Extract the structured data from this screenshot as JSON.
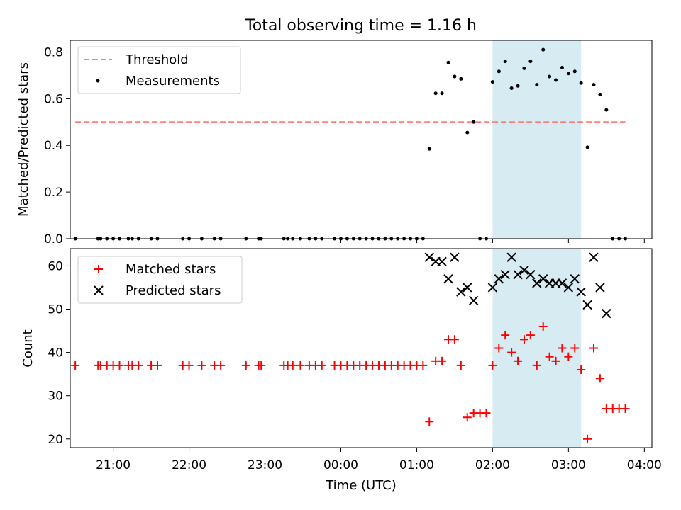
{
  "title": "Total observing time = 1.16 h",
  "colors": {
    "threshold": "#ff7f7f",
    "measurements": "#000000",
    "matched": "#ff0000",
    "predicted": "#000000",
    "observing_window": "#add8e6"
  },
  "chart_data": [
    {
      "type": "scatter",
      "ylabel": "Matched/Predicted stars",
      "ylim": [
        0,
        0.85
      ],
      "yticks": [
        "0.0",
        "0.2",
        "0.4",
        "0.6",
        "0.8"
      ],
      "xlim": [
        "20:26",
        "04:06"
      ],
      "grid": false,
      "legend_position": "top-left",
      "observing_window": [
        "02:00",
        "03:10"
      ],
      "threshold": {
        "name": "Threshold",
        "style": "dashed",
        "value": 0.5,
        "x": [
          "20:30",
          "03:45"
        ]
      },
      "series": [
        {
          "name": "Measurements",
          "x": [
            "20:30",
            "20:48",
            "20:50",
            "20:55",
            "21:00",
            "21:05",
            "21:12",
            "21:15",
            "21:20",
            "21:30",
            "21:35",
            "21:55",
            "22:00",
            "22:10",
            "22:20",
            "22:25",
            "22:45",
            "22:55",
            "22:57",
            "23:15",
            "23:18",
            "23:22",
            "23:28",
            "23:35",
            "23:40",
            "23:45",
            "23:55",
            "24:00",
            "24:05",
            "24:10",
            "24:15",
            "24:20",
            "24:25",
            "24:30",
            "24:35",
            "24:40",
            "24:45",
            "24:50",
            "24:55",
            "25:00",
            "25:05",
            "25:10",
            "25:15",
            "25:20",
            "25:25",
            "25:30",
            "25:35",
            "25:40",
            "25:45",
            "25:50",
            "25:55",
            "26:00",
            "26:05",
            "26:10",
            "26:15",
            "26:20",
            "26:25",
            "26:30",
            "26:35",
            "26:40",
            "26:45",
            "26:50",
            "26:55",
            "27:00",
            "27:05",
            "27:10",
            "27:15",
            "27:20",
            "27:25",
            "27:30",
            "27:35",
            "27:40",
            "27:45"
          ],
          "y": [
            0,
            0,
            0,
            0,
            0,
            0,
            0,
            0,
            0,
            0,
            0,
            0,
            0,
            0,
            0,
            0,
            0,
            0,
            0,
            0,
            0,
            0,
            0,
            0,
            0,
            0,
            0,
            0,
            0,
            0,
            0,
            0,
            0,
            0,
            0,
            0,
            0,
            0,
            0,
            0,
            0,
            0.385,
            0.623,
            0.623,
            0.755,
            0.695,
            0.685,
            0.455,
            0.5,
            0,
            0,
            0.672,
            0.717,
            0.76,
            0.645,
            0.655,
            0.73,
            0.76,
            0.66,
            0.81,
            0.695,
            0.68,
            0.733,
            0.708,
            0.717,
            0.667,
            0.392,
            0.66,
            0.618,
            0.552,
            0,
            0,
            0
          ]
        }
      ]
    },
    {
      "type": "scatter",
      "xlabel": "Time (UTC)",
      "ylabel": "Count",
      "ylim": [
        18,
        64
      ],
      "yticks": [
        "20",
        "30",
        "40",
        "50",
        "60"
      ],
      "xlim": [
        "20:26",
        "04:06"
      ],
      "xticks": [
        "21:00",
        "22:00",
        "23:00",
        "00:00",
        "01:00",
        "02:00",
        "03:00",
        "04:00"
      ],
      "grid": false,
      "legend_position": "top-left",
      "observing_window": [
        "02:00",
        "03:10"
      ],
      "series": [
        {
          "name": "Matched stars",
          "marker": "+",
          "x": [
            "20:30",
            "20:48",
            "20:50",
            "20:55",
            "21:00",
            "21:05",
            "21:12",
            "21:15",
            "21:20",
            "21:30",
            "21:35",
            "21:55",
            "22:00",
            "22:10",
            "22:20",
            "22:25",
            "22:45",
            "22:55",
            "22:57",
            "23:15",
            "23:18",
            "23:22",
            "23:28",
            "23:35",
            "23:40",
            "23:45",
            "23:55",
            "24:00",
            "24:05",
            "24:10",
            "24:15",
            "24:20",
            "24:25",
            "24:30",
            "24:35",
            "24:40",
            "24:45",
            "24:50",
            "24:55",
            "25:00",
            "25:05",
            "25:10",
            "25:15",
            "25:20",
            "25:25",
            "25:30",
            "25:35",
            "25:40",
            "25:45",
            "25:50",
            "25:55",
            "26:00",
            "26:05",
            "26:10",
            "26:15",
            "26:20",
            "26:25",
            "26:30",
            "26:35",
            "26:40",
            "26:45",
            "26:50",
            "26:55",
            "27:00",
            "27:05",
            "27:10",
            "27:15",
            "27:20",
            "27:25",
            "27:30",
            "27:35",
            "27:40",
            "27:45"
          ],
          "y": [
            37,
            37,
            37,
            37,
            37,
            37,
            37,
            37,
            37,
            37,
            37,
            37,
            37,
            37,
            37,
            37,
            37,
            37,
            37,
            37,
            37,
            37,
            37,
            37,
            37,
            37,
            37,
            37,
            37,
            37,
            37,
            37,
            37,
            37,
            37,
            37,
            37,
            37,
            37,
            37,
            37,
            24,
            38,
            38,
            43,
            43,
            37,
            25,
            26,
            26,
            26,
            37,
            41,
            44,
            40,
            38,
            43,
            44,
            37,
            46,
            39,
            38,
            41,
            39,
            41,
            36,
            20,
            41,
            34,
            27,
            27,
            27,
            27
          ]
        },
        {
          "name": "Predicted stars",
          "marker": "x",
          "x": [
            "25:10",
            "25:15",
            "25:20",
            "25:25",
            "25:30",
            "25:35",
            "25:40",
            "25:45",
            "26:00",
            "26:05",
            "26:10",
            "26:15",
            "26:20",
            "26:25",
            "26:30",
            "26:35",
            "26:40",
            "26:45",
            "26:50",
            "26:55",
            "27:00",
            "27:05",
            "27:10",
            "27:15",
            "27:20",
            "27:25",
            "27:30"
          ],
          "y": [
            62,
            61,
            61,
            57,
            62,
            54,
            55,
            52,
            55,
            57,
            58,
            62,
            58,
            59,
            58,
            56,
            57,
            56,
            56,
            56,
            55,
            57,
            54,
            51,
            62,
            55,
            49
          ]
        }
      ]
    }
  ]
}
